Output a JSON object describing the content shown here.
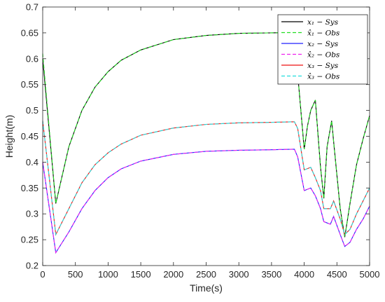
{
  "chart_data": {
    "type": "line",
    "xlabel": "Time(s)",
    "ylabel": "Height(m)",
    "xlim": [
      0,
      5000
    ],
    "ylim": [
      0.2,
      0.7
    ],
    "xticks": [
      0,
      500,
      1000,
      1500,
      2000,
      2500,
      3000,
      3500,
      4000,
      4500,
      5000
    ],
    "xtick_labels": [
      "0",
      "500",
      "1000",
      "1500",
      "2000",
      "2500",
      "3000",
      "3500",
      "4000",
      "4500",
      "5000"
    ],
    "yticks": [
      0.2,
      0.25,
      0.3,
      0.35,
      0.4,
      0.45,
      0.5,
      0.55,
      0.6,
      0.65,
      0.7
    ],
    "ytick_labels": [
      "0.2",
      "0.25",
      "0.3",
      "0.35",
      "0.4",
      "0.45",
      "0.5",
      "0.55",
      "0.6",
      "0.65",
      "0.7"
    ],
    "grid": false,
    "legend_position": "top-right",
    "series": [
      {
        "name": "x1 - Sys",
        "legend_label": "x₁ − Sys",
        "color": "#000000",
        "dash": "solid",
        "x": [
          0,
          200,
          400,
          600,
          800,
          1000,
          1200,
          1500,
          2000,
          2500,
          3000,
          3500,
          3850,
          3900,
          4000,
          4050,
          4100,
          4170,
          4250,
          4300,
          4350,
          4420,
          4450,
          4550,
          4620,
          4700,
          4800,
          4900,
          5000
        ],
        "y": [
          0.6,
          0.32,
          0.43,
          0.5,
          0.545,
          0.575,
          0.597,
          0.617,
          0.637,
          0.645,
          0.649,
          0.65,
          0.651,
          0.57,
          0.425,
          0.47,
          0.5,
          0.52,
          0.39,
          0.33,
          0.43,
          0.48,
          0.44,
          0.31,
          0.255,
          0.32,
          0.395,
          0.445,
          0.49
        ]
      },
      {
        "name": "x1hat - Obs",
        "legend_label": "x̂₁ − Obs",
        "color": "#22dd22",
        "dash": "dashed",
        "x": [
          0,
          200,
          400,
          600,
          800,
          1000,
          1200,
          1500,
          2000,
          2500,
          3000,
          3500,
          3850,
          3900,
          4000,
          4050,
          4100,
          4170,
          4250,
          4300,
          4350,
          4420,
          4450,
          4550,
          4620,
          4700,
          4800,
          4900,
          5000
        ],
        "y": [
          0.61,
          0.32,
          0.43,
          0.5,
          0.545,
          0.575,
          0.597,
          0.617,
          0.637,
          0.645,
          0.649,
          0.65,
          0.651,
          0.57,
          0.425,
          0.47,
          0.5,
          0.52,
          0.39,
          0.33,
          0.43,
          0.48,
          0.44,
          0.31,
          0.255,
          0.32,
          0.395,
          0.445,
          0.49
        ]
      },
      {
        "name": "x2 - Sys",
        "legend_label": "x₂ − Sys",
        "color": "#2222ff",
        "dash": "solid",
        "x": [
          0,
          200,
          400,
          600,
          800,
          1000,
          1200,
          1500,
          2000,
          2500,
          3000,
          3500,
          3850,
          3900,
          4000,
          4100,
          4170,
          4250,
          4300,
          4400,
          4450,
          4550,
          4620,
          4700,
          4800,
          4900,
          5000
        ],
        "y": [
          0.4,
          0.225,
          0.265,
          0.31,
          0.345,
          0.37,
          0.387,
          0.402,
          0.415,
          0.421,
          0.423,
          0.424,
          0.425,
          0.41,
          0.345,
          0.35,
          0.335,
          0.31,
          0.285,
          0.28,
          0.295,
          0.26,
          0.237,
          0.245,
          0.27,
          0.29,
          0.315
        ]
      },
      {
        "name": "x2hat - Obs",
        "legend_label": "x̂₂ − Obs",
        "color": "#ee22ee",
        "dash": "dashed",
        "x": [
          0,
          200,
          400,
          600,
          800,
          1000,
          1200,
          1500,
          2000,
          2500,
          3000,
          3500,
          3850,
          3900,
          4000,
          4100,
          4170,
          4250,
          4300,
          4400,
          4450,
          4550,
          4620,
          4700,
          4800,
          4900,
          5000
        ],
        "y": [
          0.4,
          0.225,
          0.265,
          0.31,
          0.345,
          0.37,
          0.387,
          0.402,
          0.415,
          0.421,
          0.423,
          0.424,
          0.425,
          0.41,
          0.345,
          0.35,
          0.335,
          0.31,
          0.285,
          0.28,
          0.295,
          0.26,
          0.237,
          0.245,
          0.27,
          0.29,
          0.315
        ]
      },
      {
        "name": "x3 - Sys",
        "legend_label": "x₃ − Sys",
        "color": "#ee1111",
        "dash": "solid",
        "x": [
          0,
          200,
          400,
          600,
          800,
          1000,
          1200,
          1500,
          2000,
          2500,
          3000,
          3500,
          3850,
          3900,
          4000,
          4100,
          4170,
          4250,
          4300,
          4400,
          4450,
          4550,
          4620,
          4700,
          4800,
          4900,
          5000
        ],
        "y": [
          0.48,
          0.26,
          0.31,
          0.36,
          0.395,
          0.418,
          0.435,
          0.452,
          0.466,
          0.473,
          0.476,
          0.477,
          0.478,
          0.465,
          0.385,
          0.39,
          0.37,
          0.345,
          0.31,
          0.31,
          0.325,
          0.29,
          0.26,
          0.27,
          0.3,
          0.325,
          0.35
        ]
      },
      {
        "name": "x3hat - Obs",
        "legend_label": "x̂₃ − Obs",
        "color": "#22dddd",
        "dash": "dashed",
        "x": [
          0,
          200,
          400,
          600,
          800,
          1000,
          1200,
          1500,
          2000,
          2500,
          3000,
          3500,
          3850,
          3900,
          4000,
          4100,
          4170,
          4250,
          4300,
          4400,
          4450,
          4550,
          4620,
          4700,
          4800,
          4900,
          5000
        ],
        "y": [
          0.48,
          0.26,
          0.31,
          0.36,
          0.395,
          0.418,
          0.435,
          0.452,
          0.466,
          0.473,
          0.476,
          0.477,
          0.478,
          0.465,
          0.385,
          0.39,
          0.37,
          0.345,
          0.31,
          0.31,
          0.325,
          0.29,
          0.26,
          0.27,
          0.3,
          0.325,
          0.35
        ]
      }
    ]
  }
}
